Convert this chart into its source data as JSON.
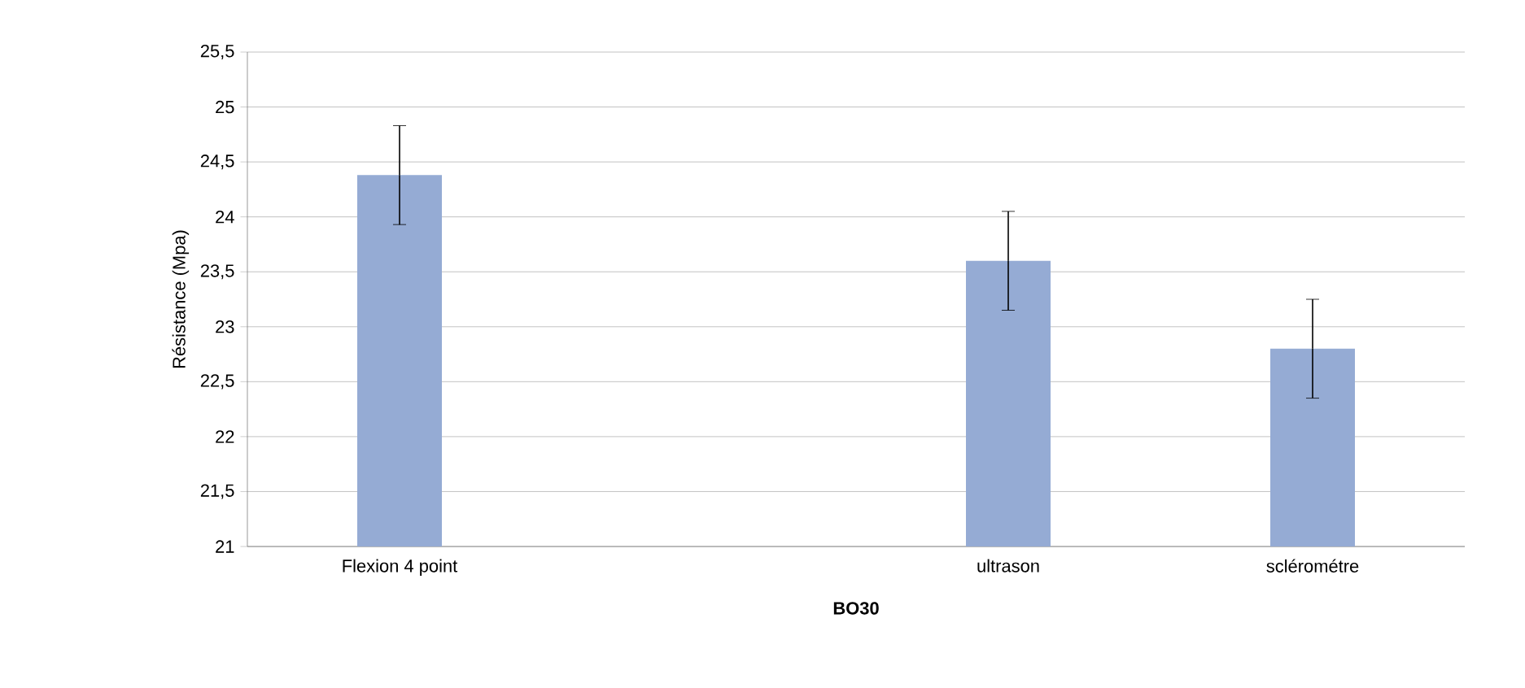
{
  "chart_data": {
    "type": "bar",
    "xlabel": "BO30",
    "ylabel": "Résistance (Mpa)",
    "categories": [
      "Flexion 4 point",
      null,
      "ultrason",
      "sclérométre"
    ],
    "values": [
      24.38,
      null,
      23.6,
      22.8
    ],
    "errors": [
      0.45,
      null,
      0.45,
      0.45
    ],
    "color": "#95abd4",
    "ylim": [
      21,
      25.5
    ],
    "yticks": [
      21,
      {
        "value": 21.5,
        "label": "21,5"
      },
      22,
      {
        "value": 22.5,
        "label": "22,5"
      },
      23,
      {
        "value": 23.5,
        "label": "23,5"
      },
      24,
      {
        "value": 24.5,
        "label": "24,5"
      },
      25,
      {
        "value": 25.5,
        "label": "25,5"
      }
    ],
    "grid": "y"
  }
}
